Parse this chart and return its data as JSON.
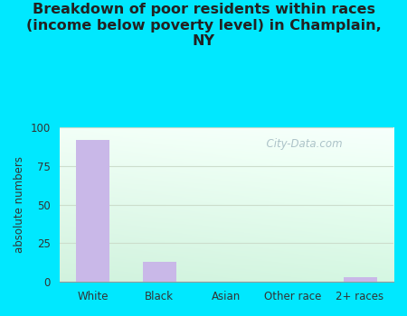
{
  "categories": [
    "White",
    "Black",
    "Asian",
    "Other race",
    "2+ races"
  ],
  "values": [
    92,
    13,
    0,
    0,
    3
  ],
  "bar_color": "#c9b8e8",
  "title": "Breakdown of poor residents within races\n(income below poverty level) in Champlain,\nNY",
  "ylabel": "absolute numbers",
  "ylim": [
    0,
    100
  ],
  "yticks": [
    0,
    25,
    50,
    75,
    100
  ],
  "background_outer": "#00e8ff",
  "title_fontsize": 11.5,
  "axis_label_fontsize": 8.5,
  "tick_fontsize": 8.5,
  "watermark_text": "  City-Data.com",
  "grid_color": "#ccddcc",
  "bar_width": 0.5
}
